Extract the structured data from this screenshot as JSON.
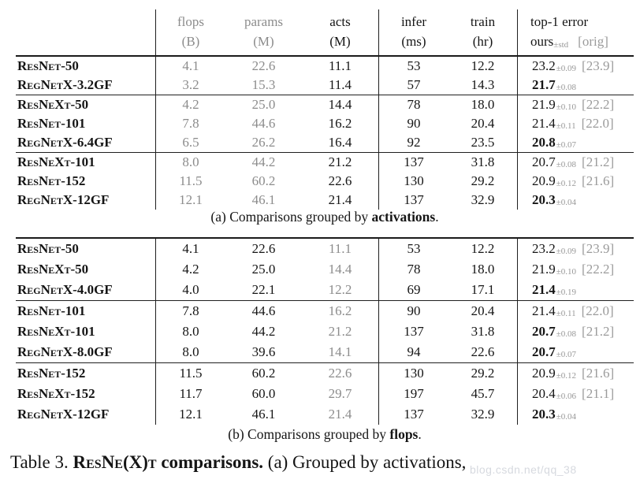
{
  "colors": {
    "text": "#151515",
    "muted_value": "#8c8c8c",
    "error_secondary": "#9b9b9b",
    "rule": "#1a1a1a",
    "watermark": "#aeb4c0",
    "background": "#ffffff"
  },
  "header": {
    "flops": {
      "l1": "flops",
      "l2": "(B)"
    },
    "params": {
      "l1": "params",
      "l2": "(M)"
    },
    "acts": {
      "l1": "acts",
      "l2": "(M)"
    },
    "infer": {
      "l1": "infer",
      "l2": "(ms)"
    },
    "train": {
      "l1": "train",
      "l2": "(hr)"
    },
    "error": {
      "l1": "top-1 error",
      "ours": "ours",
      "pm": "±std",
      "orig": "[orig]"
    }
  },
  "table_a": {
    "caption": {
      "prefix": "(a) Comparisons grouped by ",
      "bold": "activations",
      "suffix": "."
    },
    "rows": [
      {
        "name": "ResNet-50",
        "flops": "4.1",
        "params": "22.6",
        "acts": "11.1",
        "infer": "53",
        "train": "12.2",
        "err": "23.2",
        "pm": "±0.09",
        "orig": "[23.9]"
      },
      {
        "name": "RegNetX-3.2GF",
        "flops": "3.2",
        "params": "15.3",
        "acts": "11.4",
        "infer": "57",
        "train": "14.3",
        "err": "21.7",
        "pm": "±0.08",
        "orig": ""
      },
      {
        "name": "ResNeXt-50",
        "flops": "4.2",
        "params": "25.0",
        "acts": "14.4",
        "infer": "78",
        "train": "18.0",
        "err": "21.9",
        "pm": "±0.10",
        "orig": "[22.2]"
      },
      {
        "name": "ResNet-101",
        "flops": "7.8",
        "params": "44.6",
        "acts": "16.2",
        "infer": "90",
        "train": "20.4",
        "err": "21.4",
        "pm": "±0.11",
        "orig": "[22.0]"
      },
      {
        "name": "RegNetX-6.4GF",
        "flops": "6.5",
        "params": "26.2",
        "acts": "16.4",
        "infer": "92",
        "train": "23.5",
        "err": "20.8",
        "pm": "±0.07",
        "orig": ""
      },
      {
        "name": "ResNeXt-101",
        "flops": "8.0",
        "params": "44.2",
        "acts": "21.2",
        "infer": "137",
        "train": "31.8",
        "err": "20.7",
        "pm": "±0.08",
        "orig": "[21.2]"
      },
      {
        "name": "ResNet-152",
        "flops": "11.5",
        "params": "60.2",
        "acts": "22.6",
        "infer": "130",
        "train": "29.2",
        "err": "20.9",
        "pm": "±0.12",
        "orig": "[21.6]"
      },
      {
        "name": "RegNetX-12GF",
        "flops": "12.1",
        "params": "46.1",
        "acts": "21.4",
        "infer": "137",
        "train": "32.9",
        "err": "20.3",
        "pm": "±0.04",
        "orig": ""
      }
    ]
  },
  "table_b": {
    "caption": {
      "prefix": "(b) Comparisons grouped by ",
      "bold": "flops",
      "suffix": "."
    },
    "rows": [
      {
        "name": "ResNet-50",
        "flops": "4.1",
        "params": "22.6",
        "acts": "11.1",
        "infer": "53",
        "train": "12.2",
        "err": "23.2",
        "pm": "±0.09",
        "orig": "[23.9]"
      },
      {
        "name": "ResNeXt-50",
        "flops": "4.2",
        "params": "25.0",
        "acts": "14.4",
        "infer": "78",
        "train": "18.0",
        "err": "21.9",
        "pm": "±0.10",
        "orig": "[22.2]"
      },
      {
        "name": "RegNetX-4.0GF",
        "flops": "4.0",
        "params": "22.1",
        "acts": "12.2",
        "infer": "69",
        "train": "17.1",
        "err": "21.4",
        "pm": "±0.19",
        "orig": ""
      },
      {
        "name": "ResNet-101",
        "flops": "7.8",
        "params": "44.6",
        "acts": "16.2",
        "infer": "90",
        "train": "20.4",
        "err": "21.4",
        "pm": "±0.11",
        "orig": "[22.0]"
      },
      {
        "name": "ResNeXt-101",
        "flops": "8.0",
        "params": "44.2",
        "acts": "21.2",
        "infer": "137",
        "train": "31.8",
        "err": "20.7",
        "pm": "±0.08",
        "orig": "[21.2]"
      },
      {
        "name": "RegNetX-8.0GF",
        "flops": "8.0",
        "params": "39.6",
        "acts": "14.1",
        "infer": "94",
        "train": "22.6",
        "err": "20.7",
        "pm": "±0.07",
        "orig": ""
      },
      {
        "name": "ResNet-152",
        "flops": "11.5",
        "params": "60.2",
        "acts": "22.6",
        "infer": "130",
        "train": "29.2",
        "err": "20.9",
        "pm": "±0.12",
        "orig": "[21.6]"
      },
      {
        "name": "ResNeXt-152",
        "flops": "11.7",
        "params": "60.0",
        "acts": "29.7",
        "infer": "197",
        "train": "45.7",
        "err": "20.4",
        "pm": "±0.06",
        "orig": "[21.1]"
      },
      {
        "name": "RegNetX-12GF",
        "flops": "12.1",
        "params": "46.1",
        "acts": "21.4",
        "infer": "137",
        "train": "32.9",
        "err": "20.3",
        "pm": "±0.04",
        "orig": ""
      }
    ]
  },
  "caption": {
    "prefix": "Table 3. ",
    "bold_sc": "ResNe(X)t",
    "bold_rest": " comparisons.",
    "suffix": " (a) Grouped by activations,"
  },
  "watermark": "blog.csdn.net/qq_38"
}
